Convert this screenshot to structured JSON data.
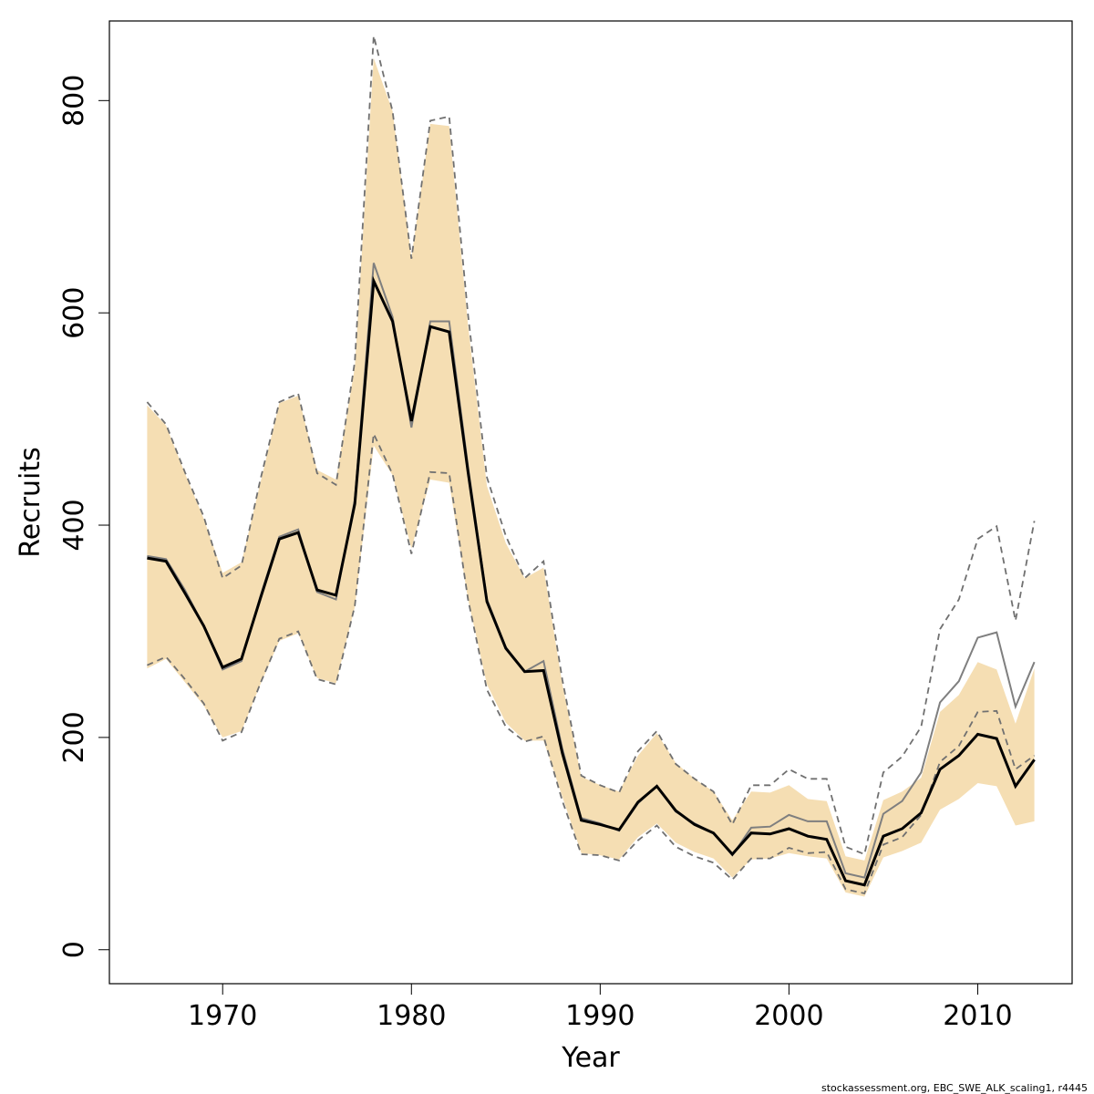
{
  "chart_data": {
    "type": "line",
    "xlabel": "Year",
    "ylabel": "Recruits",
    "xlim": [
      1964,
      2015
    ],
    "ylim": [
      -32,
      875
    ],
    "x_ticks": [
      1970,
      1980,
      1990,
      2000,
      2010
    ],
    "x_tick_labels": [
      "1970",
      "1980",
      "1990",
      "2000",
      "2010"
    ],
    "y_ticks": [
      0,
      200,
      400,
      600,
      800
    ],
    "y_tick_labels": [
      "0",
      "200",
      "400",
      "600",
      "800"
    ],
    "grid": false,
    "legend": "none",
    "x": [
      1966,
      1967,
      1968,
      1969,
      1970,
      1971,
      1972,
      1973,
      1974,
      1975,
      1976,
      1977,
      1978,
      1979,
      1980,
      1981,
      1982,
      1983,
      1984,
      1985,
      1986,
      1987,
      1988,
      1989,
      1990,
      1991,
      1992,
      1993,
      1994,
      1995,
      1996,
      1997,
      1998,
      1999,
      2000,
      2001,
      2002,
      2003,
      2004,
      2005,
      2006,
      2007,
      2008,
      2009,
      2010,
      2011,
      2012,
      2013
    ],
    "series": [
      {
        "role": "confidence-band",
        "lower": [
          265,
          274,
          252,
          230,
          200,
          206,
          250,
          291,
          298,
          256,
          251,
          323,
          475,
          447,
          378,
          443,
          440,
          330,
          250,
          214,
          197,
          197,
          144,
          91,
          89,
          85,
          106,
          119,
          101,
          92,
          86,
          68,
          85,
          86,
          91,
          88,
          86,
          54,
          50,
          87,
          93,
          101,
          132,
          142,
          157,
          154,
          117,
          121
        ],
        "upper": [
          513,
          494,
          449,
          406,
          355,
          365,
          440,
          515,
          522,
          452,
          443,
          549,
          840,
          790,
          652,
          778,
          776,
          588,
          437,
          383,
          350,
          360,
          250,
          163,
          155,
          149,
          183,
          204,
          176,
          161,
          149,
          122,
          149,
          148,
          155,
          142,
          140,
          88,
          84,
          141,
          149,
          162,
          224,
          240,
          271,
          264,
          213,
          265
        ]
      },
      {
        "role": "estimate",
        "color": "#000000",
        "values": [
          369,
          366,
          336,
          305,
          266,
          274,
          331,
          387,
          393,
          339,
          334,
          420,
          630,
          592,
          498,
          587,
          582,
          450,
          328,
          284,
          262,
          263,
          185,
          122,
          118,
          113,
          139,
          154,
          131,
          118,
          110,
          90,
          110,
          109,
          114,
          107,
          104,
          65,
          61,
          107,
          114,
          129,
          170,
          183,
          203,
          199,
          154,
          179
        ]
      },
      {
        "role": "retrospective-estimate",
        "color": "#7f7f7f",
        "values": [
          371,
          368,
          339,
          305,
          264,
          272,
          333,
          389,
          396,
          337,
          330,
          424,
          647,
          596,
          492,
          592,
          592,
          455,
          330,
          285,
          262,
          272,
          189,
          124,
          119,
          112,
          138,
          154,
          130,
          119,
          110,
          89,
          115,
          116,
          127,
          121,
          121,
          72,
          68,
          128,
          140,
          167,
          233,
          253,
          294,
          299,
          229,
          271
        ]
      },
      {
        "role": "retrospective-upper",
        "color": "#7f7f7f",
        "style": "dashed",
        "values": [
          516,
          495,
          450,
          408,
          350,
          362,
          443,
          516,
          524,
          449,
          438,
          554,
          861,
          790,
          651,
          781,
          785,
          598,
          445,
          390,
          350,
          366,
          254,
          164,
          155,
          148,
          187,
          206,
          175,
          161,
          149,
          118,
          155,
          155,
          170,
          161,
          161,
          97,
          90,
          167,
          182,
          210,
          302,
          330,
          387,
          399,
          310,
          404
        ]
      },
      {
        "role": "retrospective-lower",
        "color": "#7f7f7f",
        "style": "dashed",
        "values": [
          268,
          276,
          255,
          232,
          197,
          205,
          251,
          293,
          300,
          255,
          250,
          324,
          486,
          448,
          373,
          450,
          449,
          330,
          245,
          210,
          196,
          201,
          140,
          90,
          89,
          84,
          103,
          117,
          97,
          88,
          82,
          66,
          86,
          86,
          96,
          91,
          92,
          57,
          53,
          99,
          106,
          127,
          177,
          192,
          224,
          225,
          170,
          183
        ]
      }
    ],
    "colors": {
      "band": "#f5deb3",
      "dashed_line": "#707070",
      "axis": "#000000"
    }
  },
  "footer": "stockassessment.org, EBC_SWE_ALK_scaling1, r4445"
}
